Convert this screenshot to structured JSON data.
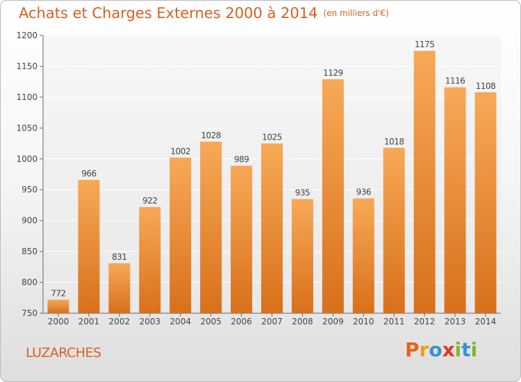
{
  "chart_data": {
    "type": "bar",
    "title": "Achats et Charges Externes 2000 à 2014",
    "unit": "(en milliers d'€)",
    "categories": [
      "2000",
      "2001",
      "2002",
      "2003",
      "2004",
      "2005",
      "2006",
      "2007",
      "2008",
      "2009",
      "2010",
      "2011",
      "2012",
      "2013",
      "2014"
    ],
    "values": [
      772,
      966,
      831,
      922,
      1002,
      1028,
      989,
      1025,
      935,
      1129,
      936,
      1018,
      1175,
      1116,
      1108
    ],
    "ylim": [
      750,
      1200
    ],
    "yticks": [
      750,
      800,
      850,
      900,
      950,
      1000,
      1050,
      1100,
      1150,
      1200
    ],
    "grid": true,
    "xlabel": "",
    "ylabel": ""
  },
  "footer": {
    "commune": "LUZARCHES",
    "logo_letters": [
      "P",
      "r",
      "o",
      "x",
      "i",
      "t",
      "i"
    ]
  },
  "colors": {
    "bar_light": "#f6a652",
    "bar_dark": "#d9711c",
    "title": "#d9601f",
    "logo": [
      "#e8601c",
      "#f29b1a",
      "#3a8fd6",
      "#e8391c",
      "#7cb82f",
      "#3a8fd6",
      "#7cb82f"
    ]
  }
}
